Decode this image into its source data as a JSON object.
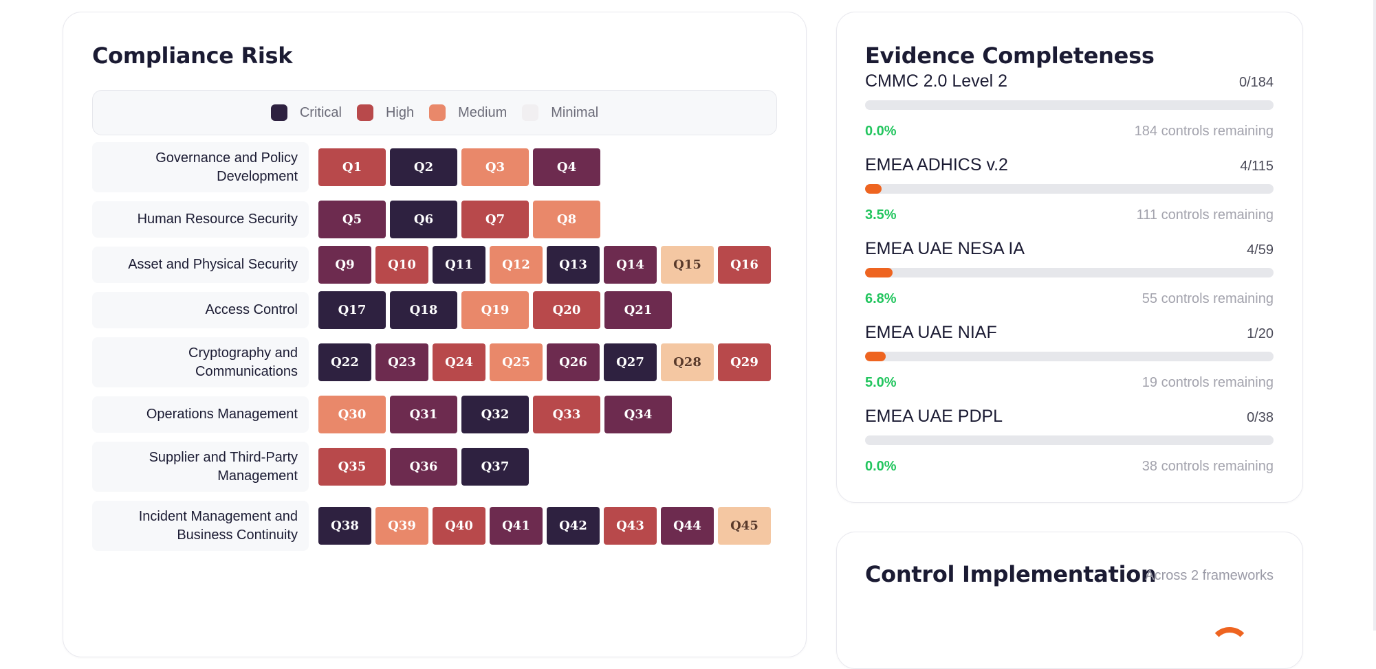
{
  "compliance_risk": {
    "title": "Compliance Risk",
    "legend": [
      {
        "label": "Critical",
        "color": "#2e2140"
      },
      {
        "label": "High",
        "color": "#b8494b"
      },
      {
        "label": "Medium",
        "color": "#e9886a"
      },
      {
        "label": "Minimal",
        "color": "#f1eff1"
      }
    ],
    "rows": [
      {
        "label": "Governance and Policy Development",
        "cells": [
          {
            "id": "Q1",
            "level": "High"
          },
          {
            "id": "Q2",
            "level": "Critical"
          },
          {
            "id": "Q3",
            "level": "Medium"
          },
          {
            "id": "Q4",
            "level": "Severe"
          }
        ]
      },
      {
        "label": "Human Resource Security",
        "cells": [
          {
            "id": "Q5",
            "level": "Severe"
          },
          {
            "id": "Q6",
            "level": "Critical"
          },
          {
            "id": "Q7",
            "level": "High"
          },
          {
            "id": "Q8",
            "level": "Medium"
          }
        ]
      },
      {
        "label": "Asset and Physical Security",
        "cells": [
          {
            "id": "Q9",
            "level": "Severe"
          },
          {
            "id": "Q10",
            "level": "High"
          },
          {
            "id": "Q11",
            "level": "Critical"
          },
          {
            "id": "Q12",
            "level": "Medium"
          },
          {
            "id": "Q13",
            "level": "Critical"
          },
          {
            "id": "Q14",
            "level": "Severe"
          },
          {
            "id": "Q15",
            "level": "Low"
          },
          {
            "id": "Q16",
            "level": "High"
          }
        ]
      },
      {
        "label": "Access Control",
        "cells": [
          {
            "id": "Q17",
            "level": "Critical"
          },
          {
            "id": "Q18",
            "level": "Critical"
          },
          {
            "id": "Q19",
            "level": "Medium"
          },
          {
            "id": "Q20",
            "level": "High"
          },
          {
            "id": "Q21",
            "level": "Severe"
          }
        ]
      },
      {
        "label": "Cryptography and Communications",
        "cells": [
          {
            "id": "Q22",
            "level": "Critical"
          },
          {
            "id": "Q23",
            "level": "Severe"
          },
          {
            "id": "Q24",
            "level": "High"
          },
          {
            "id": "Q25",
            "level": "Medium"
          },
          {
            "id": "Q26",
            "level": "Severe"
          },
          {
            "id": "Q27",
            "level": "Critical"
          },
          {
            "id": "Q28",
            "level": "Low"
          },
          {
            "id": "Q29",
            "level": "High"
          }
        ]
      },
      {
        "label": "Operations Management",
        "cells": [
          {
            "id": "Q30",
            "level": "Medium"
          },
          {
            "id": "Q31",
            "level": "Severe"
          },
          {
            "id": "Q32",
            "level": "Critical"
          },
          {
            "id": "Q33",
            "level": "High"
          },
          {
            "id": "Q34",
            "level": "Severe"
          }
        ]
      },
      {
        "label": "Supplier and Third-Party Management",
        "cells": [
          {
            "id": "Q35",
            "level": "High"
          },
          {
            "id": "Q36",
            "level": "Severe"
          },
          {
            "id": "Q37",
            "level": "Critical"
          }
        ]
      },
      {
        "label": "Incident Management and Business Continuity",
        "cells": [
          {
            "id": "Q38",
            "level": "Critical"
          },
          {
            "id": "Q39",
            "level": "Medium"
          },
          {
            "id": "Q40",
            "level": "High"
          },
          {
            "id": "Q41",
            "level": "Severe"
          },
          {
            "id": "Q42",
            "level": "Critical"
          },
          {
            "id": "Q43",
            "level": "High"
          },
          {
            "id": "Q44",
            "level": "Severe"
          },
          {
            "id": "Q45",
            "level": "Low"
          }
        ]
      }
    ],
    "level_colors": {
      "Critical": "#2e2140",
      "Severe": "#6d2b4f",
      "High": "#b8494b",
      "Medium": "#e9886a",
      "Low": "#f4c7a2"
    }
  },
  "evidence": {
    "title": "Evidence Completeness",
    "frameworks": [
      {
        "name": "CMMC 2.0 Level 2",
        "count": "0/184",
        "percent_text": "0.0%",
        "percent": 0,
        "remaining": "184 controls remaining"
      },
      {
        "name": "EMEA ADHICS v.2",
        "count": "4/115",
        "percent_text": "3.5%",
        "percent": 3.5,
        "remaining": "111 controls remaining"
      },
      {
        "name": "EMEA UAE NESA IA",
        "count": "4/59",
        "percent_text": "6.8%",
        "percent": 6.8,
        "remaining": "55 controls remaining"
      },
      {
        "name": "EMEA UAE NIAF",
        "count": "1/20",
        "percent_text": "5.0%",
        "percent": 5.0,
        "remaining": "19 controls remaining"
      },
      {
        "name": "EMEA UAE PDPL",
        "count": "0/38",
        "percent_text": "0.0%",
        "percent": 0,
        "remaining": "38 controls remaining"
      }
    ],
    "bar_color": "#ee6420",
    "percent_color": "#22c55e"
  },
  "control_implementation": {
    "title": "Control Implementation",
    "subtitle": "Across 2 frameworks"
  }
}
